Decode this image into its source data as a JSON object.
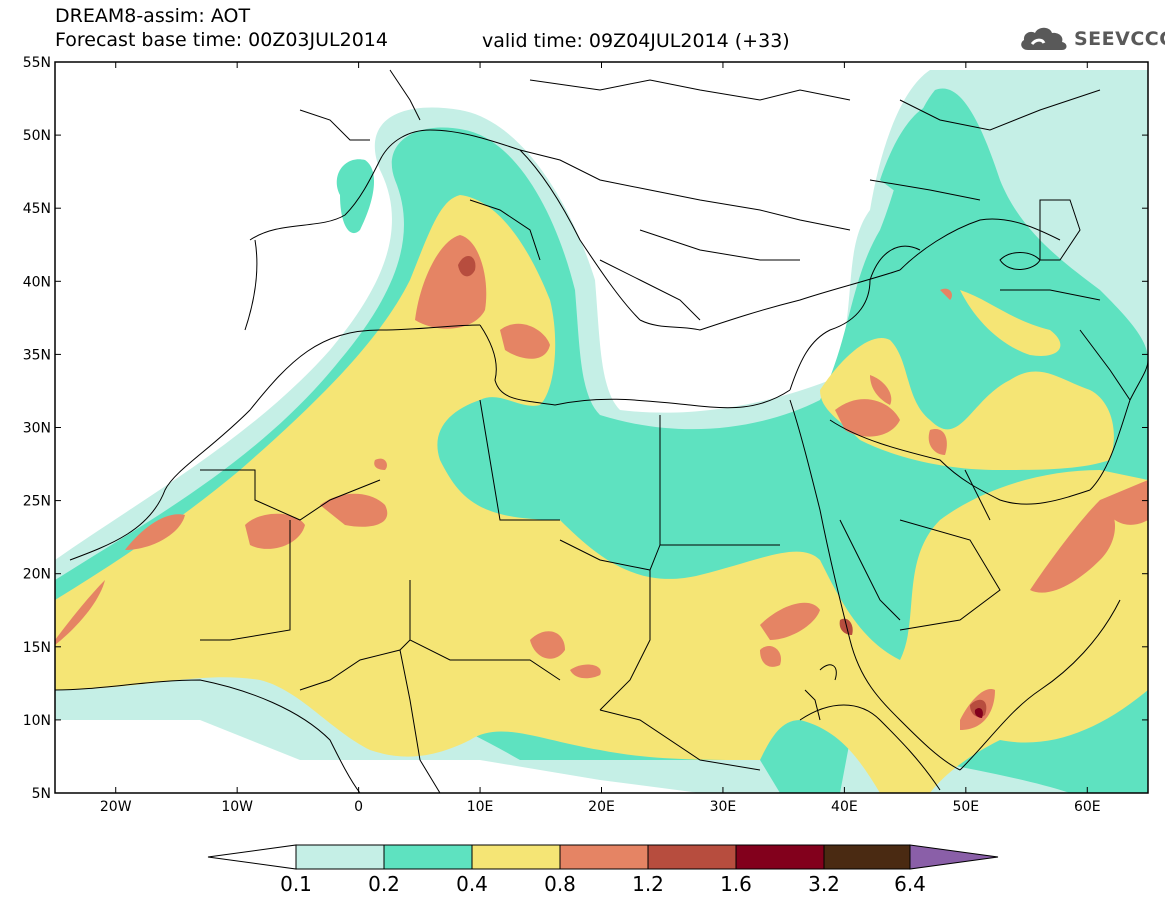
{
  "header": {
    "title": "DREAM8-assim: AOT",
    "base_time": "Forecast base time: 00Z03JUL2014",
    "valid_time": "valid time: 09Z04JUL2014 (+33)"
  },
  "logo": {
    "text": "SEEVCCC",
    "icon": "cloud-icon",
    "color": "#595959"
  },
  "map": {
    "lon_range": [
      -25,
      65
    ],
    "lat_range": [
      5,
      55
    ],
    "lat_ticks": [
      "55N",
      "50N",
      "45N",
      "40N",
      "35N",
      "30N",
      "25N",
      "20N",
      "15N",
      "10N",
      "5N"
    ],
    "lon_ticks": [
      "20W",
      "10W",
      "0",
      "10E",
      "20E",
      "30E",
      "40E",
      "50E",
      "60E"
    ]
  },
  "colorbar": {
    "labels": [
      "0.1",
      "0.2",
      "0.4",
      "0.8",
      "1.2",
      "1.6",
      "3.2",
      "6.4"
    ],
    "colors": [
      "#ffffff",
      "#c5efe6",
      "#5ee2c0",
      "#f5e575",
      "#e58464",
      "#b74d3e",
      "#82001c",
      "#4a2a12",
      "#8a5fa8"
    ]
  },
  "aot_colors": {
    "lt_0_1": "#ffffff",
    "b_0_1_0_2": "#c5efe6",
    "b_0_2_0_4": "#5ee2c0",
    "b_0_4_0_8": "#f5e575",
    "b_0_8_1_2": "#e58464",
    "b_1_2_1_6": "#b74d3e",
    "b_1_6_3_2": "#82001c"
  }
}
